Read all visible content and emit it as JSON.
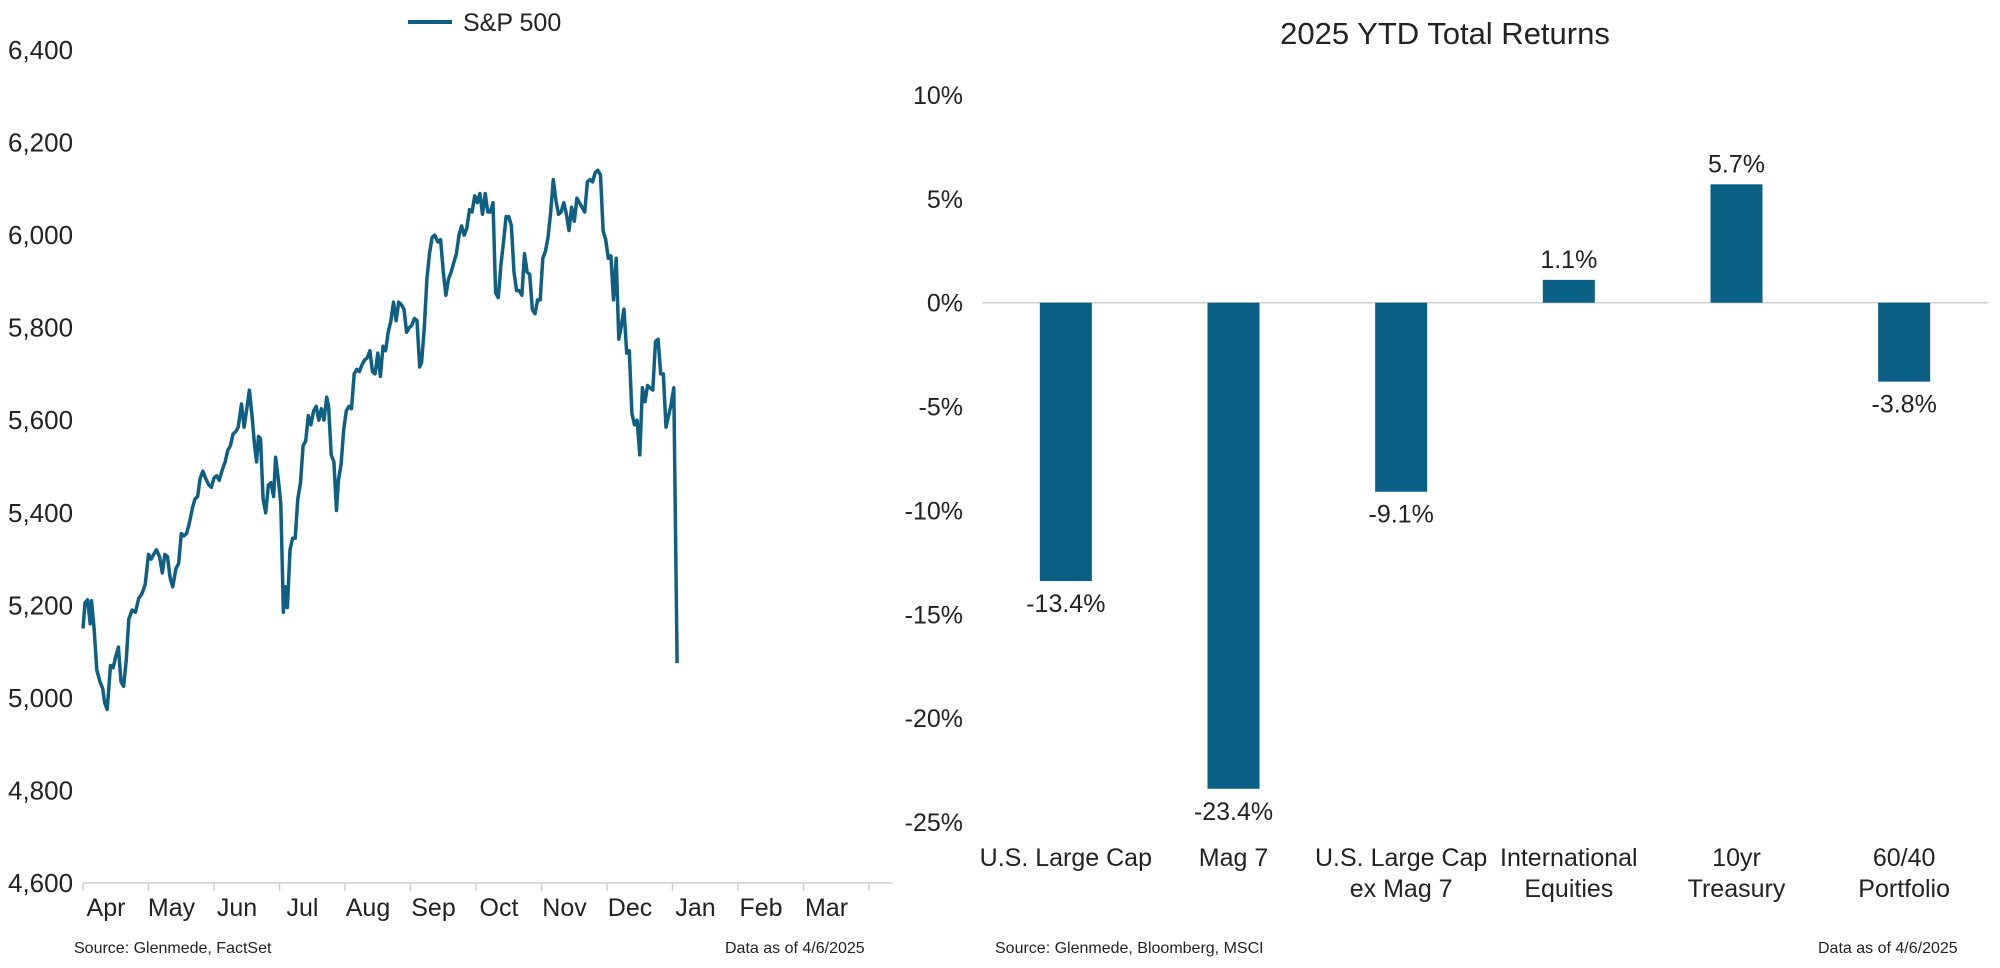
{
  "colors": {
    "series": "#0e5f82",
    "bar": "#0a5f84",
    "axis": "#cfcfcf",
    "text": "#222222"
  },
  "left_footer": {
    "source": "Source: Glenmede, FactSet",
    "date": "Data as of 4/6/2025"
  },
  "right_footer": {
    "source": "Source: Glenmede, Bloomberg, MSCI",
    "date": "Data as of 4/6/2025"
  },
  "chart_data": [
    {
      "type": "line",
      "title": "",
      "xlabel": "",
      "ylabel": "",
      "legend": {
        "placement": "top-center",
        "entries": [
          "S&P 500"
        ]
      },
      "grid": false,
      "ylim": [
        4600,
        6400
      ],
      "y_ticks": [
        "6,400",
        "6,200",
        "6,000",
        "5,800",
        "5,600",
        "5,400",
        "5,200",
        "5,000",
        "4,800",
        "4,600"
      ],
      "y_tick_values": [
        6400,
        6200,
        6000,
        5800,
        5600,
        5400,
        5200,
        5000,
        4800,
        4600
      ],
      "x_month_labels": [
        "Apr",
        "May",
        "Jun",
        "Jul",
        "Aug",
        "Sep",
        "Oct",
        "Nov",
        "Dec",
        "Jan",
        "Feb",
        "Mar"
      ],
      "series": [
        {
          "name": "S&P 500",
          "points_by_month_fraction": [
            [
              0.0,
              5150
            ],
            [
              0.03,
              5205
            ],
            [
              0.07,
              5212
            ],
            [
              0.11,
              5160
            ],
            [
              0.13,
              5210
            ],
            [
              0.17,
              5150
            ],
            [
              0.21,
              5060
            ],
            [
              0.26,
              5035
            ],
            [
              0.3,
              5020
            ],
            [
              0.33,
              4990
            ],
            [
              0.37,
              4975
            ],
            [
              0.42,
              5070
            ],
            [
              0.46,
              5065
            ],
            [
              0.5,
              5090
            ],
            [
              0.54,
              5110
            ],
            [
              0.58,
              5035
            ],
            [
              0.62,
              5025
            ],
            [
              0.66,
              5080
            ],
            [
              0.7,
              5170
            ],
            [
              0.75,
              5190
            ],
            [
              0.8,
              5185
            ],
            [
              0.85,
              5215
            ],
            [
              0.9,
              5225
            ],
            [
              0.95,
              5245
            ],
            [
              1.0,
              5310
            ],
            [
              1.04,
              5300
            ],
            [
              1.08,
              5310
            ],
            [
              1.12,
              5320
            ],
            [
              1.17,
              5305
            ],
            [
              1.21,
              5270
            ],
            [
              1.25,
              5310
            ],
            [
              1.29,
              5305
            ],
            [
              1.33,
              5260
            ],
            [
              1.37,
              5240
            ],
            [
              1.42,
              5280
            ],
            [
              1.46,
              5290
            ],
            [
              1.5,
              5355
            ],
            [
              1.54,
              5350
            ],
            [
              1.58,
              5355
            ],
            [
              1.62,
              5375
            ],
            [
              1.67,
              5410
            ],
            [
              1.71,
              5430
            ],
            [
              1.75,
              5435
            ],
            [
              1.79,
              5475
            ],
            [
              1.83,
              5490
            ],
            [
              1.87,
              5475
            ],
            [
              1.92,
              5460
            ],
            [
              1.96,
              5455
            ],
            [
              2.0,
              5475
            ],
            [
              2.04,
              5480
            ],
            [
              2.08,
              5470
            ],
            [
              2.12,
              5490
            ],
            [
              2.17,
              5510
            ],
            [
              2.21,
              5535
            ],
            [
              2.25,
              5545
            ],
            [
              2.29,
              5570
            ],
            [
              2.33,
              5575
            ],
            [
              2.37,
              5585
            ],
            [
              2.42,
              5635
            ],
            [
              2.46,
              5585
            ],
            [
              2.5,
              5625
            ],
            [
              2.54,
              5665
            ],
            [
              2.58,
              5610
            ],
            [
              2.62,
              5545
            ],
            [
              2.65,
              5510
            ],
            [
              2.68,
              5565
            ],
            [
              2.71,
              5560
            ],
            [
              2.75,
              5430
            ],
            [
              2.79,
              5400
            ],
            [
              2.83,
              5460
            ],
            [
              2.87,
              5465
            ],
            [
              2.91,
              5435
            ],
            [
              2.94,
              5520
            ],
            [
              2.98,
              5475
            ],
            [
              3.02,
              5420
            ],
            [
              3.06,
              5185
            ],
            [
              3.09,
              5240
            ],
            [
              3.12,
              5195
            ],
            [
              3.16,
              5320
            ],
            [
              3.2,
              5345
            ],
            [
              3.24,
              5345
            ],
            [
              3.28,
              5430
            ],
            [
              3.32,
              5465
            ],
            [
              3.36,
              5545
            ],
            [
              3.4,
              5555
            ],
            [
              3.44,
              5610
            ],
            [
              3.48,
              5590
            ],
            [
              3.52,
              5620
            ],
            [
              3.56,
              5630
            ],
            [
              3.6,
              5600
            ],
            [
              3.64,
              5625
            ],
            [
              3.68,
              5600
            ],
            [
              3.72,
              5650
            ],
            [
              3.75,
              5630
            ],
            [
              3.79,
              5525
            ],
            [
              3.83,
              5510
            ],
            [
              3.87,
              5405
            ],
            [
              3.9,
              5470
            ],
            [
              3.94,
              5505
            ],
            [
              3.98,
              5580
            ],
            [
              4.02,
              5620
            ],
            [
              4.06,
              5630
            ],
            [
              4.1,
              5625
            ],
            [
              4.14,
              5700
            ],
            [
              4.18,
              5710
            ],
            [
              4.22,
              5705
            ],
            [
              4.26,
              5720
            ],
            [
              4.3,
              5730
            ],
            [
              4.34,
              5735
            ],
            [
              4.38,
              5750
            ],
            [
              4.42,
              5705
            ],
            [
              4.46,
              5700
            ],
            [
              4.5,
              5745
            ],
            [
              4.54,
              5695
            ],
            [
              4.58,
              5760
            ],
            [
              4.62,
              5750
            ],
            [
              4.66,
              5790
            ],
            [
              4.7,
              5815
            ],
            [
              4.74,
              5855
            ],
            [
              4.78,
              5815
            ],
            [
              4.82,
              5855
            ],
            [
              4.86,
              5850
            ],
            [
              4.9,
              5840
            ],
            [
              4.94,
              5790
            ],
            [
              4.98,
              5800
            ],
            [
              5.02,
              5805
            ],
            [
              5.06,
              5820
            ],
            [
              5.1,
              5815
            ],
            [
              5.14,
              5715
            ],
            [
              5.17,
              5725
            ],
            [
              5.21,
              5800
            ],
            [
              5.25,
              5905
            ],
            [
              5.29,
              5960
            ],
            [
              5.33,
              5995
            ],
            [
              5.37,
              6000
            ],
            [
              5.42,
              5985
            ],
            [
              5.46,
              5990
            ],
            [
              5.5,
              5920
            ],
            [
              5.54,
              5870
            ],
            [
              5.58,
              5905
            ],
            [
              5.62,
              5920
            ],
            [
              5.66,
              5940
            ],
            [
              5.7,
              5960
            ],
            [
              5.74,
              6000
            ],
            [
              5.78,
              6020
            ],
            [
              5.82,
              6000
            ],
            [
              5.86,
              6015
            ],
            [
              5.9,
              6055
            ],
            [
              5.94,
              6050
            ],
            [
              5.98,
              6085
            ],
            [
              6.02,
              6070
            ],
            [
              6.06,
              6090
            ],
            [
              6.1,
              6045
            ],
            [
              6.14,
              6090
            ],
            [
              6.18,
              6050
            ],
            [
              6.22,
              6050
            ],
            [
              6.26,
              6070
            ],
            [
              6.3,
              5875
            ],
            [
              6.34,
              5865
            ],
            [
              6.38,
              5935
            ],
            [
              6.42,
              5985
            ],
            [
              6.46,
              6040
            ],
            [
              6.5,
              6040
            ],
            [
              6.54,
              6020
            ],
            [
              6.58,
              5920
            ],
            [
              6.62,
              5880
            ],
            [
              6.66,
              5880
            ],
            [
              6.7,
              5870
            ],
            [
              6.74,
              5960
            ],
            [
              6.78,
              5920
            ],
            [
              6.82,
              5915
            ],
            [
              6.86,
              5840
            ],
            [
              6.9,
              5830
            ],
            [
              6.94,
              5860
            ],
            [
              6.98,
              5860
            ],
            [
              7.02,
              5950
            ],
            [
              7.06,
              5965
            ],
            [
              7.1,
              5995
            ],
            [
              7.14,
              6050
            ],
            [
              7.18,
              6120
            ],
            [
              7.22,
              6075
            ],
            [
              7.26,
              6045
            ],
            [
              7.3,
              6050
            ],
            [
              7.34,
              6070
            ],
            [
              7.38,
              6045
            ],
            [
              7.42,
              6010
            ],
            [
              7.46,
              6060
            ],
            [
              7.5,
              6030
            ],
            [
              7.54,
              6080
            ],
            [
              7.58,
              6070
            ],
            [
              7.62,
              6060
            ],
            [
              7.66,
              6050
            ],
            [
              7.7,
              6115
            ],
            [
              7.74,
              6120
            ],
            [
              7.78,
              6115
            ],
            [
              7.82,
              6135
            ],
            [
              7.86,
              6140
            ],
            [
              7.9,
              6130
            ],
            [
              7.94,
              6010
            ],
            [
              7.98,
              5990
            ],
            [
              8.02,
              5950
            ],
            [
              8.06,
              5955
            ],
            [
              8.1,
              5860
            ],
            [
              8.14,
              5950
            ],
            [
              8.18,
              5775
            ],
            [
              8.22,
              5805
            ],
            [
              8.26,
              5840
            ],
            [
              8.3,
              5745
            ],
            [
              8.34,
              5750
            ],
            [
              8.38,
              5615
            ],
            [
              8.42,
              5590
            ],
            [
              8.46,
              5600
            ],
            [
              8.5,
              5525
            ],
            [
              8.54,
              5670
            ],
            [
              8.58,
              5640
            ],
            [
              8.62,
              5675
            ],
            [
              8.66,
              5670
            ],
            [
              8.7,
              5665
            ],
            [
              8.74,
              5770
            ],
            [
              8.78,
              5775
            ],
            [
              8.82,
              5700
            ],
            [
              8.86,
              5700
            ],
            [
              8.9,
              5585
            ],
            [
              8.94,
              5610
            ],
            [
              8.98,
              5635
            ],
            [
              9.02,
              5670
            ],
            [
              9.07,
              5075
            ]
          ]
        }
      ]
    },
    {
      "type": "bar",
      "title": "2025 YTD Total Returns",
      "xlabel": "",
      "ylabel": "",
      "grid": false,
      "ylim": [
        -25,
        10
      ],
      "y_ticks": [
        "10%",
        "5%",
        "0%",
        "-5%",
        "-10%",
        "-15%",
        "-20%",
        "-25%"
      ],
      "y_tick_values": [
        10,
        5,
        0,
        -5,
        -10,
        -15,
        -20,
        -25
      ],
      "categories": [
        [
          "U.S. Large Cap"
        ],
        [
          "Mag 7"
        ],
        [
          "U.S. Large Cap",
          "ex Mag 7"
        ],
        [
          "International",
          "Equities"
        ],
        [
          "10yr",
          "Treasury"
        ],
        [
          "60/40",
          "Portfolio"
        ]
      ],
      "values": [
        -13.4,
        -23.4,
        -9.1,
        1.1,
        5.7,
        -3.8
      ],
      "data_labels": [
        "-13.4%",
        "-23.4%",
        "-9.1%",
        "1.1%",
        "5.7%",
        "-3.8%"
      ]
    }
  ]
}
